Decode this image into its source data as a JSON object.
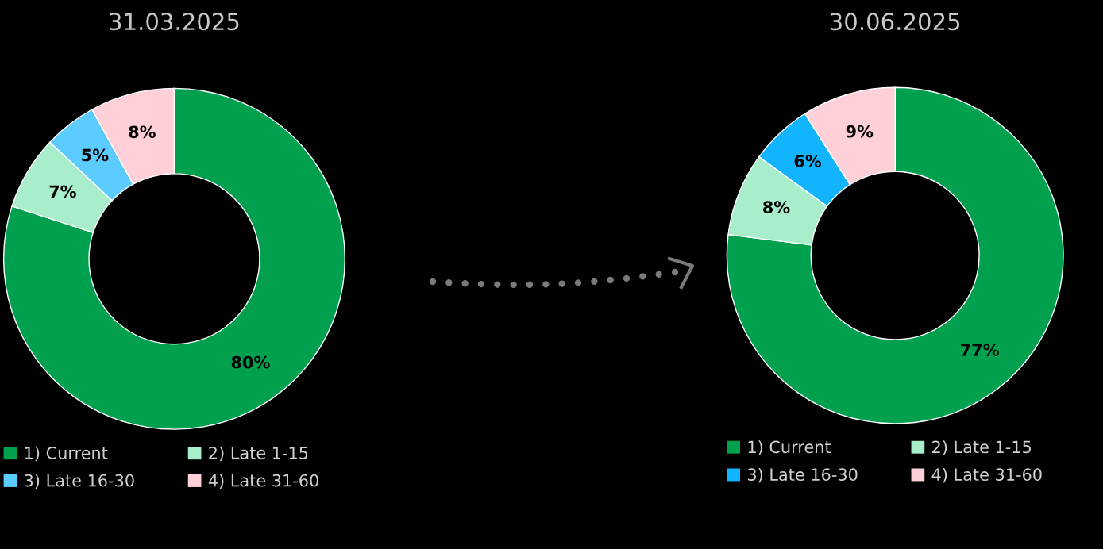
{
  "chart_data": [
    {
      "type": "donut",
      "title": "31.03.2025",
      "categories": [
        "1) Current",
        "2) Late 1-15",
        "3) Late 16-30",
        "4) Late 31-60"
      ],
      "values": [
        80,
        7,
        5,
        8
      ],
      "value_labels": [
        "80%",
        "7%",
        "5%",
        "8%"
      ],
      "colors": [
        "#00a04f",
        "#a8eecb",
        "#5ccbff",
        "#ffd0d8"
      ],
      "legend": "bottom"
    },
    {
      "type": "donut",
      "title": "30.06.2025",
      "categories": [
        "1) Current",
        "2) Late 1-15",
        "3) Late 16-30",
        "4) Late 31-60"
      ],
      "values": [
        77,
        8,
        6,
        9
      ],
      "value_labels": [
        "77%",
        "8%",
        "6%",
        "9%"
      ],
      "colors": [
        "#00a04f",
        "#a8eecb",
        "#12b4ff",
        "#ffd0d8"
      ],
      "legend": "bottom"
    }
  ]
}
